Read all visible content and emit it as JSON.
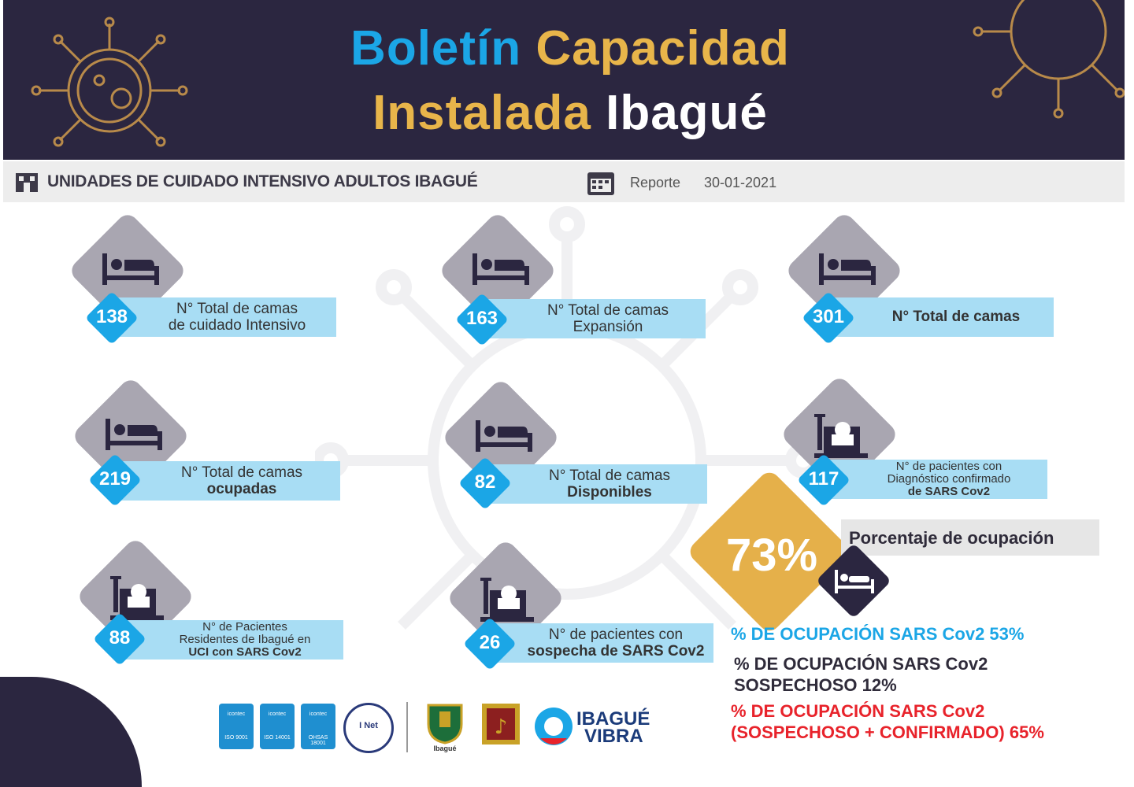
{
  "header": {
    "title_line1_a": "Boletín",
    "title_line1_b": "Capacidad",
    "title_line2_a": "Instalada",
    "title_line2_b": "Ibagué"
  },
  "subheader": {
    "label": "UNIDADES DE CUIDADO INTENSIVO ADULTOS IBAGUÉ",
    "report_label": "Reporte",
    "report_date": "30-01-2021"
  },
  "cards": [
    {
      "value": "138",
      "line1": "N° Total  de camas",
      "line2": "de cuidado Intensivo"
    },
    {
      "value": "163",
      "line1": "N° Total  de camas",
      "line2": "Expansión"
    },
    {
      "value": "301",
      "line1": "N° Total  de camas"
    },
    {
      "value": "219",
      "line1": "N° Total  de camas",
      "line2": "ocupadas"
    },
    {
      "value": "82",
      "line1": "N° Total  de camas",
      "line2": "Disponibles"
    },
    {
      "value": "117",
      "line1": "N° de pacientes con",
      "line2": "Diagnóstico confirmado",
      "line3": "de SARS Cov2"
    },
    {
      "value": "88",
      "line1": "N° de Pacientes",
      "line2": "Residentes  de Ibagué en",
      "line3": "UCI con SARS Cov2"
    },
    {
      "value": "26",
      "line1": "N° de pacientes con",
      "line2": "sospecha de SARS Cov2"
    }
  ],
  "occupancy": {
    "percent": "73%",
    "label": "Porcentaje  de ocupación",
    "sars_line": "% DE OCUPACIÓN SARS Cov2 53%",
    "suspect_line1": "% DE OCUPACIÓN SARS Cov2",
    "suspect_line2": "SOSPECHOSO 12%",
    "combined_line1": "% DE OCUPACIÓN SARS Cov2",
    "combined_line2": "(SOSPECHOSO + CONFIRMADO)  65%",
    "sars_color": "#1ba6e6",
    "suspect_color": "#2f2b3a",
    "combined_color": "#e8232b"
  },
  "footer": {
    "cert_label": "icontec",
    "cert_codes": [
      "ISO 9001",
      "ISO 14001",
      "OHSAS 18001"
    ],
    "inet_label": "I Net",
    "municipio": "Ibagué",
    "brand_line1": "IBAGUÉ",
    "brand_line2": "VIBRA"
  },
  "icons": [
    "bed-icon",
    "patient-monitor-icon",
    "calendar-icon",
    "building-icon"
  ],
  "colors": {
    "navy": "#2b2640",
    "blue": "#1ba6e6",
    "gold": "#e8b54a",
    "light_blue": "#a8ddf4"
  }
}
